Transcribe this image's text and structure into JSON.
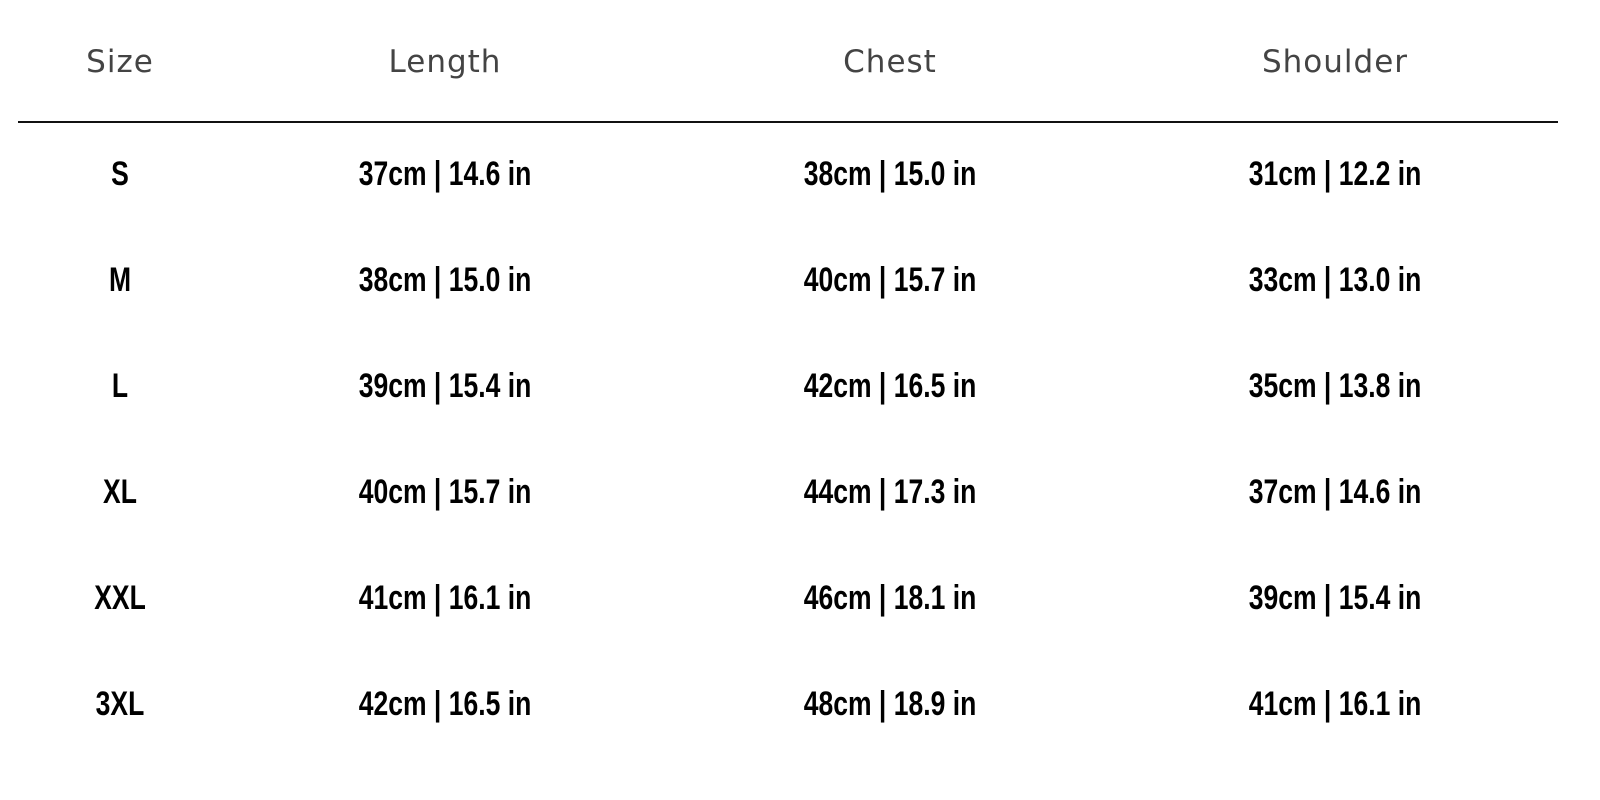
{
  "table": {
    "headers": [
      "Size",
      "Length",
      "Chest",
      "Shoulder"
    ],
    "rows": [
      [
        "S",
        "37cm | 14.6 in",
        "38cm | 15.0 in",
        "31cm | 12.2 in"
      ],
      [
        "M",
        "38cm | 15.0 in",
        "40cm | 15.7 in",
        "33cm | 13.0 in"
      ],
      [
        "L",
        "39cm | 15.4 in",
        "42cm | 16.5 in",
        "35cm | 13.8 in"
      ],
      [
        "XL",
        "40cm | 15.7 in",
        "44cm | 17.3 in",
        "37cm | 14.6 in"
      ],
      [
        "XXL",
        "41cm | 16.1 in",
        "46cm | 18.1 in",
        "39cm | 15.4 in"
      ],
      [
        "3XL",
        "42cm | 16.5 in",
        "48cm | 18.9 in",
        "41cm | 16.1 in"
      ]
    ]
  }
}
